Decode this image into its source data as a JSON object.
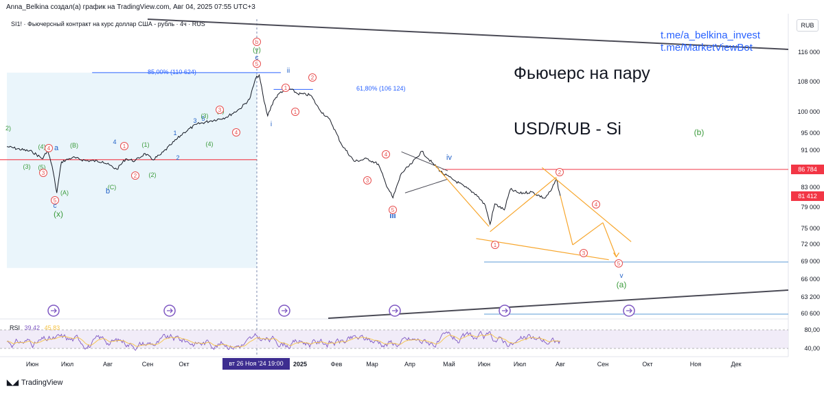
{
  "header": {
    "author_line": "Anna_Belkina создал(а) график на TradingView.com, Авг 04, 2025 07:55 UTC+3",
    "symbol_line": "SI1! · Фьючерсный контракт на курс доллар США - рубль · 4ч · RUS",
    "currency": "RUB"
  },
  "title": {
    "line1": "Фьючерс на пару",
    "line2": "USD/RUB - Si"
  },
  "links": [
    "t.me/a_belkina_invest",
    "t.me/MarketViewBot"
  ],
  "chart_data": {
    "type": "line",
    "price_axis": {
      "ticks": [
        "116 000",
        "108 000",
        "100 000",
        "95 000",
        "91 000",
        "86 784",
        "83 000",
        "81 412",
        "79 000",
        "75 000",
        "72 000",
        "69 000",
        "66 000",
        "63 200",
        "60 600"
      ]
    },
    "price_tags": [
      {
        "label": "86 784",
        "color": "#f23645"
      },
      {
        "label": "81 412",
        "color": "#f23645"
      }
    ],
    "time_axis": [
      "Июн",
      "Июл",
      "Авг",
      "Сен",
      "Окт",
      "Н",
      "вт 26 Ноя '24 19:00",
      "2025",
      "Фев",
      "Мар",
      "Апр",
      "Май",
      "Июн",
      "Июл",
      "Авг",
      "Сен",
      "Окт",
      "Ноя",
      "Дек"
    ],
    "crosshair_label": "вт 26 Ноя '24   19:00",
    "fib_levels": [
      {
        "label": "85,00% (110 624)"
      },
      {
        "label": "61,80% (106 124)"
      }
    ],
    "price_series": [
      {
        "date": "2024-05-20",
        "value": 92000
      },
      {
        "date": "2024-06-01",
        "value": 90800
      },
      {
        "date": "2024-06-10",
        "value": 89200
      },
      {
        "date": "2024-06-14",
        "value": 91200
      },
      {
        "date": "2024-06-18",
        "value": 87500
      },
      {
        "date": "2024-06-22",
        "value": 82000
      },
      {
        "date": "2024-06-26",
        "value": 88500
      },
      {
        "date": "2024-07-05",
        "value": 89500
      },
      {
        "date": "2024-07-15",
        "value": 88800
      },
      {
        "date": "2024-07-28",
        "value": 88600
      },
      {
        "date": "2024-08-08",
        "value": 86800
      },
      {
        "date": "2024-08-15",
        "value": 89200
      },
      {
        "date": "2024-08-22",
        "value": 88700
      },
      {
        "date": "2024-08-30",
        "value": 90400
      },
      {
        "date": "2024-09-05",
        "value": 89000
      },
      {
        "date": "2024-09-12",
        "value": 90200
      },
      {
        "date": "2024-09-20",
        "value": 92400
      },
      {
        "date": "2024-10-01",
        "value": 95300
      },
      {
        "date": "2024-10-10",
        "value": 97200
      },
      {
        "date": "2024-10-20",
        "value": 98000
      },
      {
        "date": "2024-11-01",
        "value": 98900
      },
      {
        "date": "2024-11-12",
        "value": 101000
      },
      {
        "date": "2024-11-20",
        "value": 103500
      },
      {
        "date": "2024-11-25",
        "value": 109000
      },
      {
        "date": "2024-11-28",
        "value": 110000
      },
      {
        "date": "2024-12-02",
        "value": 103000
      },
      {
        "date": "2024-12-05",
        "value": 99200
      },
      {
        "date": "2024-12-10",
        "value": 103200
      },
      {
        "date": "2024-12-16",
        "value": 105500
      },
      {
        "date": "2024-12-24",
        "value": 106200
      },
      {
        "date": "2024-12-30",
        "value": 105000
      },
      {
        "date": "2025-01-10",
        "value": 104600
      },
      {
        "date": "2025-01-17",
        "value": 101000
      },
      {
        "date": "2025-01-27",
        "value": 98000
      },
      {
        "date": "2025-02-05",
        "value": 92500
      },
      {
        "date": "2025-02-15",
        "value": 88600
      },
      {
        "date": "2025-02-25",
        "value": 89200
      },
      {
        "date": "2025-03-06",
        "value": 88000
      },
      {
        "date": "2025-03-12",
        "value": 84000
      },
      {
        "date": "2025-03-18",
        "value": 81000
      },
      {
        "date": "2025-03-25",
        "value": 86000
      },
      {
        "date": "2025-04-02",
        "value": 88000
      },
      {
        "date": "2025-04-10",
        "value": 90900
      },
      {
        "date": "2025-04-18",
        "value": 88300
      },
      {
        "date": "2025-04-26",
        "value": 86000
      },
      {
        "date": "2025-05-06",
        "value": 84500
      },
      {
        "date": "2025-05-15",
        "value": 83200
      },
      {
        "date": "2025-05-25",
        "value": 81700
      },
      {
        "date": "2025-06-02",
        "value": 79500
      },
      {
        "date": "2025-06-06",
        "value": 75900
      },
      {
        "date": "2025-06-10",
        "value": 79800
      },
      {
        "date": "2025-06-18",
        "value": 78600
      },
      {
        "date": "2025-06-23",
        "value": 82700
      },
      {
        "date": "2025-07-01",
        "value": 81900
      },
      {
        "date": "2025-07-10",
        "value": 82200
      },
      {
        "date": "2025-07-20",
        "value": 80900
      },
      {
        "date": "2025-07-25",
        "value": 82500
      },
      {
        "date": "2025-07-29",
        "value": 84800
      },
      {
        "date": "2025-08-01",
        "value": 81400
      }
    ],
    "horizontal_levels": [
      89000,
      86784,
      69000,
      60600
    ],
    "forecast_path": [
      {
        "date": "2025-08-01",
        "value": 81412
      },
      {
        "date": "2025-08-10",
        "value": 72000
      },
      {
        "date": "2025-08-22",
        "value": 76200
      },
      {
        "date": "2025-09-01",
        "value": 69200
      }
    ],
    "wave_labels": [
      "b",
      "(y)",
      "c",
      "5",
      "ii",
      "2",
      "i",
      "1",
      "iii",
      "iv",
      "(b)",
      "v",
      "(a)",
      "(x)",
      "a",
      "(B)",
      "(C)",
      "b",
      "(A)",
      "(3)",
      "(4)",
      "(5)",
      "3",
      "4",
      "5",
      "2",
      "4",
      "1",
      "(1)",
      "(2)",
      "(3)",
      "(4)",
      "(5)"
    ],
    "rsi": {
      "label": "RSI",
      "value1": "39,42",
      "value2": "45,83",
      "ticks": [
        "80,00",
        "40,00"
      ],
      "color_main": "#7e57c2",
      "color_signal": "#f6c343",
      "band_color": "#ede7f6"
    },
    "colors": {
      "price": "#131722",
      "fib": "#2962ff",
      "resistance": "#f23645",
      "pattern": "#f7a52a",
      "trend": "#4a4a55",
      "support": "#5b9bd5",
      "box": "#e1f1fa",
      "wave_red": "#e74c4c",
      "wave_green": "#3a9a3a",
      "wave_blue": "#1f5fc7"
    }
  },
  "footer": {
    "brand": "TradingView"
  }
}
